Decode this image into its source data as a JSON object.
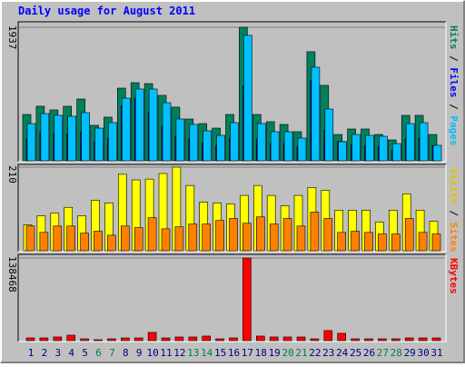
{
  "chart_data": {
    "type": "bar",
    "title": "Daily usage for August 2011",
    "categories": [
      "1",
      "2",
      "3",
      "4",
      "5",
      "6",
      "7",
      "8",
      "9",
      "10",
      "11",
      "12",
      "13",
      "14",
      "15",
      "16",
      "17",
      "18",
      "19",
      "20",
      "21",
      "22",
      "23",
      "24",
      "25",
      "26",
      "27",
      "28",
      "29",
      "30",
      "31"
    ],
    "category_label_colors": [
      "#000080",
      "#000080",
      "#000080",
      "#000080",
      "#000080",
      "#008040",
      "#008040",
      "#000080",
      "#000080",
      "#000080",
      "#000080",
      "#000080",
      "#008040",
      "#008040",
      "#000080",
      "#000080",
      "#000080",
      "#000080",
      "#000080",
      "#008040",
      "#008040",
      "#000080",
      "#000080",
      "#000080",
      "#000080",
      "#000080",
      "#008040",
      "#008040",
      "#000080",
      "#000080",
      "#000080"
    ],
    "legend_separator": " / ",
    "panels": [
      {
        "ylim": [
          0,
          1937
        ],
        "yticks": [
          1937
        ],
        "series": [
          {
            "name": "Hits",
            "color": "#00805c",
            "values": [
              672,
              791,
              738,
              791,
              896,
              514,
              633,
              1054,
              1133,
              1120,
              949,
              778,
              606,
              540,
              474,
              672,
              1937,
              672,
              567,
              527,
              422,
              1582,
              1094,
              382,
              461,
              461,
              382,
              303,
              659,
              659,
              382
            ]
          },
          {
            "name": "Files",
            "color": "#0000ff",
            "values": [
              320,
              410,
              400,
              390,
              420,
              280,
              330,
              800,
              900,
              700,
              500,
              360,
              320,
              260,
              220,
              330,
              1090,
              320,
              250,
              250,
              200,
              1170,
              450,
              280,
              230,
              220,
              210,
              150,
              320,
              330,
              220
            ]
          },
          {
            "name": "Pages",
            "color": "#00c0ff",
            "values": [
              540,
              685,
              659,
              646,
              699,
              474,
              554,
              909,
              1041,
              1041,
              843,
              606,
              527,
              435,
              369,
              554,
              1819,
              540,
              422,
              422,
              330,
              1357,
              751,
              277,
              382,
              369,
              356,
              250,
              540,
              554,
              224
            ]
          }
        ]
      },
      {
        "ylim": [
          0,
          210
        ],
        "yticks": [
          210
        ],
        "series": [
          {
            "name": "Visits",
            "color": "#ffff00",
            "values": [
              65,
              88,
              95,
              109,
              88,
              127,
              120,
              192,
              178,
              180,
              194,
              210,
              164,
              122,
              120,
              118,
              139,
              164,
              139,
              113,
              139,
              159,
              152,
              102,
              102,
              102,
              72,
              102,
              143,
              102,
              74
            ]
          },
          {
            "name": "Sites",
            "color": "#ff8000",
            "values": [
              62,
              46,
              62,
              62,
              44,
              49,
              39,
              62,
              58,
              83,
              55,
              60,
              67,
              67,
              76,
              81,
              69,
              85,
              67,
              81,
              62,
              97,
              81,
              46,
              49,
              46,
              42,
              42,
              81,
              46,
              42
            ]
          }
        ]
      },
      {
        "ylim": [
          0,
          138468
        ],
        "yticks": [
          138468
        ],
        "series": [
          {
            "name": "KBytes",
            "color": "#ff0000",
            "values": [
              4614,
              4614,
              6152,
              9228,
              3076,
              1538,
              3076,
              4614,
              4614,
              13842,
              4614,
              6152,
              6152,
              7690,
              3076,
              4614,
              138468,
              7690,
              6152,
              6152,
              6152,
              3076,
              16918,
              12304,
              3076,
              3076,
              3076,
              3076,
              4614,
              4614,
              4614
            ]
          }
        ]
      }
    ]
  }
}
